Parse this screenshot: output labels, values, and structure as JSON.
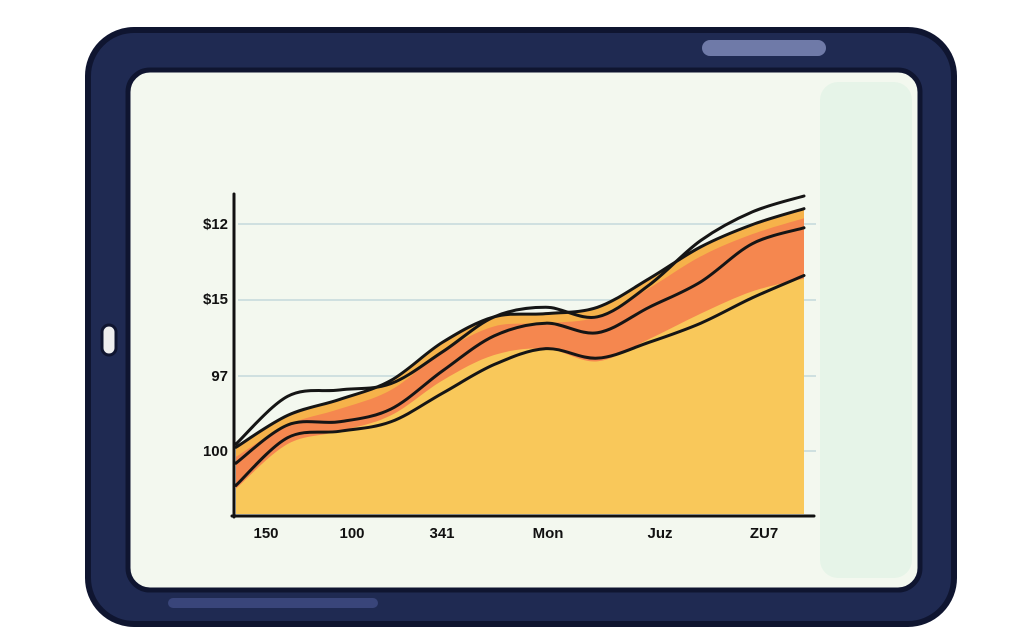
{
  "chart_data": {
    "type": "area",
    "title": "",
    "xlabel": "",
    "ylabel": "",
    "x_ticks": [
      "150",
      "100",
      "341",
      "Mon",
      "Juz",
      "ZU7"
    ],
    "y_ticks": [
      "$12",
      "$15",
      "97",
      "100"
    ],
    "grid": true,
    "stacked": true,
    "ylim": [
      0,
      100
    ],
    "series": [
      {
        "color": "#f9c85a",
        "values": [
          8,
          22,
          26,
          31,
          42,
          50,
          52,
          48,
          55,
          63,
          70,
          74
        ]
      },
      {
        "color": "#f5874f",
        "values": [
          10,
          6,
          7,
          8,
          9,
          9,
          8,
          14,
          16,
          18,
          18,
          19
        ]
      },
      {
        "color": "#f6b24a",
        "values": [
          3,
          3,
          3,
          3,
          3,
          3,
          3,
          3,
          3,
          3,
          3,
          3
        ]
      }
    ],
    "lines": [
      {
        "color": "#151515",
        "values": [
          9,
          24,
          26,
          29,
          38,
          47,
          52,
          49,
          54,
          60,
          68,
          75
        ]
      },
      {
        "color": "#151515",
        "values": [
          16,
          28,
          29,
          33,
          45,
          56,
          60,
          57,
          65,
          73,
          85,
          90
        ]
      },
      {
        "color": "#151515",
        "values": [
          22,
          37,
          39,
          41,
          51,
          62,
          65,
          62,
          72,
          86,
          95,
          100
        ]
      }
    ]
  },
  "device": {
    "frame_color": "#1f2a52",
    "screen_color": "#f3f8ef",
    "gridline_color": "#cfe0e0"
  }
}
